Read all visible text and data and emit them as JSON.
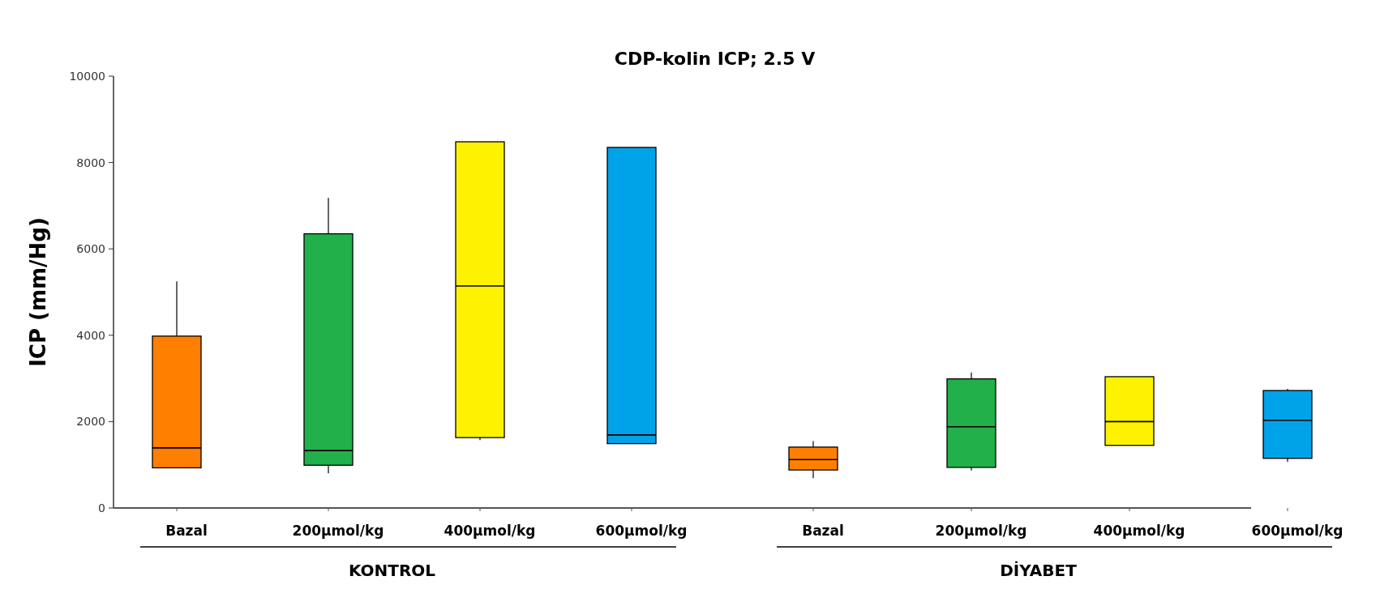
{
  "chart_data": {
    "type": "box",
    "title": "CDP-kolin ICP; 2.5 V",
    "ylabel": "ICP (mm/Hg)",
    "categories": [
      "Bazal",
      "200µmol/kg",
      "400µmol/kg",
      "600µmol/kg",
      "Bazal",
      "200µmol/kg",
      "400µmol/kg",
      "600µmol/kg"
    ],
    "colors": [
      "#ff7f00",
      "#22b04b",
      "#fff200",
      "#00a2e8",
      "#ff7f00",
      "#22b04b",
      "#fff200",
      "#00a2e8"
    ],
    "boxes": [
      {
        "low": 930,
        "q1": 930,
        "median": 1390,
        "q3": 3980,
        "high": 5250
      },
      {
        "low": 800,
        "q1": 990,
        "median": 1330,
        "q3": 6350,
        "high": 7180
      },
      {
        "low": 1570,
        "q1": 1630,
        "median": 5140,
        "q3": 8480,
        "high": 8480
      },
      {
        "low": 1490,
        "q1": 1490,
        "median": 1690,
        "q3": 8350,
        "high": 8350
      },
      {
        "low": 690,
        "q1": 880,
        "median": 1120,
        "q3": 1410,
        "high": 1550
      },
      {
        "low": 870,
        "q1": 940,
        "median": 1880,
        "q3": 2990,
        "high": 3140
      },
      {
        "low": 1450,
        "q1": 1450,
        "median": 2000,
        "q3": 3040,
        "high": 3040
      },
      {
        "low": 1070,
        "q1": 1150,
        "median": 2030,
        "q3": 2720,
        "high": 2760
      }
    ],
    "ylim": [
      0,
      10000
    ],
    "yticks": [
      0,
      2000,
      4000,
      6000,
      8000,
      10000
    ],
    "annotations": [
      "KONTROL",
      "DİYABET"
    ]
  }
}
